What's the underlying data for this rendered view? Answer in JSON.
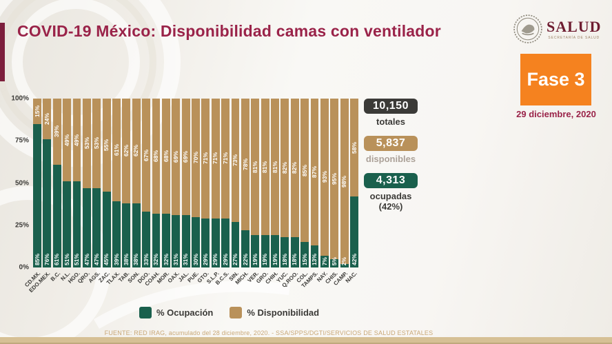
{
  "title": "COVID-19 México: Disponibilidad camas con ventilador",
  "logo": {
    "name": "SALUD",
    "subtitle": "SECRETARÍA DE SALUD"
  },
  "phase_badge": {
    "label": "Fase 3",
    "date": "29 diciembre, 2020",
    "color": "#F5821F"
  },
  "stats": [
    {
      "value": "10,150",
      "label": "totales",
      "label2": "",
      "color": "#3B3A37",
      "label_muted": false
    },
    {
      "value": "5,837",
      "label": "disponibles",
      "label2": "",
      "color": "#B9915A",
      "label_muted": true
    },
    {
      "value": "4,313",
      "label": "ocupadas",
      "label2": "(42%)",
      "color": "#1A604D",
      "label_muted": false
    }
  ],
  "chart_data": {
    "type": "bar",
    "stacked": true,
    "categories": [
      "CD.MX.",
      "EDO.MEX.",
      "B.C.",
      "N.L.",
      "HGO.",
      "QRO.",
      "AGS.",
      "ZAC.",
      "TLAX.",
      "TAB.",
      "SON.",
      "DGO.",
      "COAH.",
      "MOR.",
      "OAX.",
      "JAL.",
      "PUE.",
      "GTO.",
      "S.L.P.",
      "B.C.S.",
      "SIN.",
      "MICH.",
      "VER.",
      "GRO.",
      "CHIH.",
      "YUC.",
      "Q.ROO.",
      "COL.",
      "TAMPS.",
      "NAY.",
      "CHIS.",
      "CAMP.",
      "NAC."
    ],
    "series": [
      {
        "name": "% Ocupación",
        "color": "#1A604D",
        "values": [
          85,
          76,
          61,
          51,
          51,
          47,
          47,
          45,
          39,
          38,
          38,
          33,
          32,
          32,
          31,
          31,
          30,
          29,
          29,
          29,
          27,
          22,
          19,
          19,
          19,
          18,
          18,
          15,
          13,
          7,
          5,
          2,
          42
        ]
      },
      {
        "name": "% Disponibilidad",
        "color": "#B9915A",
        "values": [
          15,
          24,
          39,
          49,
          49,
          53,
          53,
          55,
          61,
          62,
          62,
          67,
          68,
          68,
          69,
          69,
          70,
          71,
          71,
          71,
          73,
          78,
          81,
          81,
          81,
          82,
          82,
          85,
          87,
          93,
          95,
          98,
          58
        ]
      }
    ],
    "y_ticks": [
      "100%",
      "75%",
      "50%",
      "25%",
      "0%"
    ],
    "ylim": [
      0,
      100
    ],
    "ylabel": "",
    "xlabel": ""
  },
  "footer": "FUENTE: RED IRAG, acumulado del 28 diciembre, 2020. -  SSA/SPPS/DGTI/SERVICIOS DE SALUD ESTATALES"
}
